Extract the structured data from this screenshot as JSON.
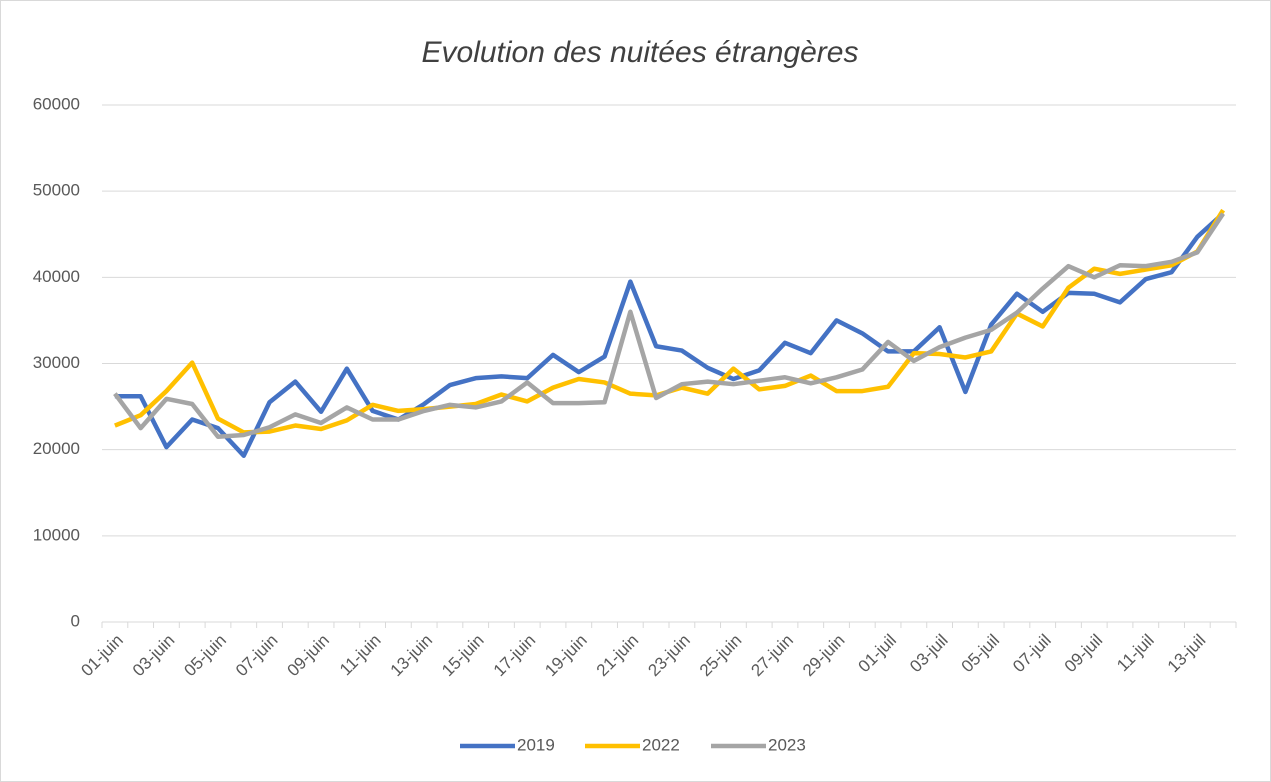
{
  "chart_data": {
    "type": "line",
    "title": "Evolution des nuitées étrangères",
    "categories": [
      "01-juin",
      null,
      "03-juin",
      null,
      "05-juin",
      null,
      "07-juin",
      null,
      "09-juin",
      null,
      "11-juin",
      null,
      "13-juin",
      null,
      "15-juin",
      null,
      "17-juin",
      null,
      "19-juin",
      null,
      "21-juin",
      null,
      "23-juin",
      null,
      "25-juin",
      null,
      "27-juin",
      null,
      "29-juin",
      null,
      "01-juil",
      null,
      "03-juil",
      null,
      "05-juil",
      null,
      "07-juil",
      null,
      "09-juil",
      null,
      "11-juil",
      null,
      "13-juil",
      null
    ],
    "series": [
      {
        "name": "2019",
        "color": "#4472c4",
        "values": [
          26200,
          26200,
          20300,
          23500,
          22500,
          19300,
          25500,
          27900,
          24400,
          29400,
          24500,
          23500,
          25300,
          27500,
          28300,
          28500,
          28300,
          31000,
          29000,
          30800,
          39500,
          32000,
          31500,
          29500,
          28200,
          29200,
          32400,
          31200,
          35000,
          33500,
          31400,
          31400,
          34200,
          26700,
          34500,
          38100,
          36000,
          38200,
          38100,
          37100,
          39800,
          40600,
          44700,
          47400
        ]
      },
      {
        "name": "2022",
        "color": "#ffc000",
        "values": [
          22800,
          24000,
          26800,
          30100,
          23600,
          22000,
          22100,
          22800,
          22400,
          23400,
          25200,
          24500,
          24700,
          25000,
          25300,
          26400,
          25600,
          27200,
          28200,
          27800,
          26500,
          26300,
          27200,
          26500,
          29400,
          27000,
          27400,
          28600,
          26800,
          26800,
          27300,
          31200,
          31100,
          30700,
          31400,
          35800,
          34300,
          38800,
          41000,
          40400,
          40900,
          41400,
          43000,
          47800
        ]
      },
      {
        "name": "2023",
        "color": "#a5a5a5",
        "values": [
          26500,
          22500,
          25900,
          25300,
          21500,
          21700,
          22600,
          24100,
          23100,
          24900,
          23500,
          23500,
          24500,
          25200,
          24900,
          25600,
          27800,
          25400,
          25400,
          25500,
          36000,
          26000,
          27600,
          27900,
          27600,
          28000,
          28400,
          27700,
          28400,
          29300,
          32500,
          30300,
          31900,
          33000,
          33900,
          35900,
          38700,
          41300,
          40000,
          41400,
          41300,
          41800,
          42900,
          47400
        ]
      }
    ],
    "ylim": [
      0,
      60000
    ],
    "yticks": [
      0,
      10000,
      20000,
      30000,
      40000,
      50000,
      60000
    ],
    "grid": true,
    "legend": "bottom"
  }
}
